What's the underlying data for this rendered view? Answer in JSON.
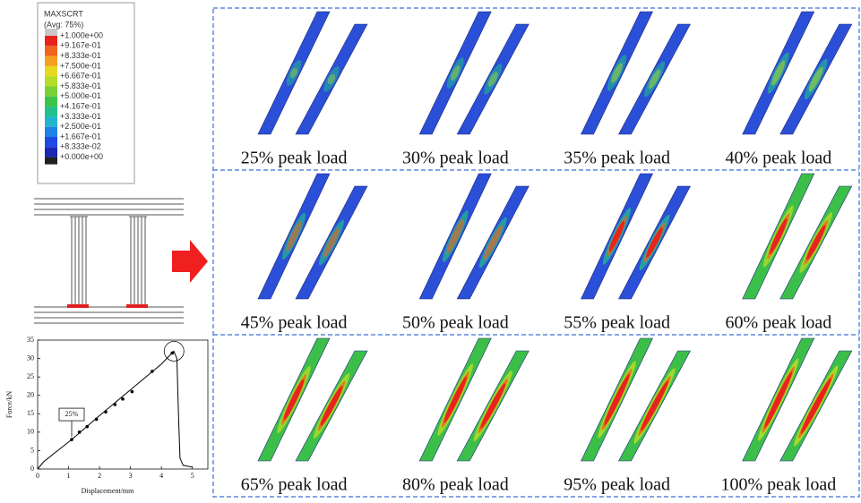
{
  "legend": {
    "title": "MAXSCRT",
    "subtitle": "(Avg: 75%)",
    "levels": [
      "+1.000e+00",
      "+9.167e-01",
      "+8.333e-01",
      "+7.500e-01",
      "+6.667e-01",
      "+5.833e-01",
      "+5.000e-01",
      "+4.167e-01",
      "+3.333e-01",
      "+2.500e-01",
      "+1.667e-01",
      "+8.333e-02",
      "+0.000e+00"
    ],
    "colors": [
      "#e8231c",
      "#f0641c",
      "#f5a020",
      "#e6d81e",
      "#b4dc28",
      "#78d038",
      "#3cc44a",
      "#22c08c",
      "#20b4d0",
      "#1e82e6",
      "#1e4ae6",
      "#1a28b4"
    ]
  },
  "chart_data": {
    "type": "line",
    "xlabel": "Displacement/mm",
    "ylabel": "Force/kN",
    "annotation": "25%",
    "x": [
      0,
      0.2,
      0.5,
      1.1,
      2,
      3,
      4,
      4.4,
      4.5,
      4.55,
      4.6,
      4.7,
      5.0
    ],
    "values": [
      0,
      2,
      4,
      8,
      14.5,
      21.5,
      28.5,
      32,
      30,
      15,
      3,
      1,
      0.5
    ],
    "marker_x": [
      1.1,
      1.35,
      1.6,
      1.9,
      2.2,
      2.5,
      2.75,
      3.05,
      3.7,
      4.35
    ],
    "marker_values": [
      8,
      10,
      11.5,
      13.5,
      15.5,
      17.5,
      19,
      21,
      26.5,
      31.5
    ],
    "color": "#000000",
    "xlim": [
      0,
      5.5
    ],
    "ylim": [
      0,
      35
    ],
    "xticks": [
      0,
      1,
      2,
      3,
      4,
      5
    ],
    "yticks": [
      0,
      5,
      10,
      15,
      20,
      25,
      30,
      35
    ],
    "grid": false
  },
  "panel_labels": [
    "25% peak load",
    "30% peak load",
    "35% peak load",
    "40% peak load",
    "45% peak load",
    "50% peak load",
    "55% peak load",
    "60% peak load",
    "65% peak load",
    "80% peak load",
    "95% peak load",
    "100% peak load"
  ]
}
